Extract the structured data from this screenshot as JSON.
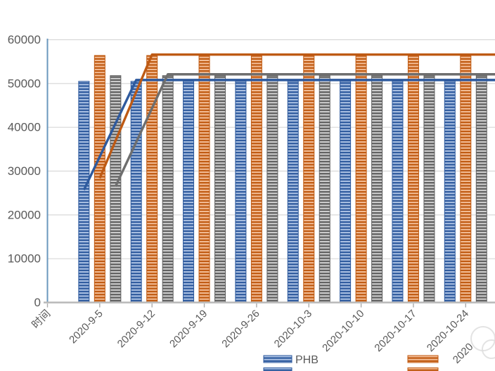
{
  "chart_data": {
    "type": "bar",
    "subtype": "bar-line-combo",
    "title": "",
    "xlabel": "",
    "ylabel": "",
    "categories": [
      "时间",
      "2020-9-5",
      "2020-9-12",
      "2020-9-19",
      "2020-9-26",
      "2020-10-3",
      "2020-10-10",
      "2020-10-17",
      "2020-10-24"
    ],
    "clipped_next_category_partial": "2020",
    "bar_series": [
      {
        "name": "PHB",
        "color_dark": "#2E5A9E",
        "color_light": "#AEC4E5",
        "values": [
          null,
          50500,
          50500,
          50500,
          50500,
          50500,
          50500,
          50500,
          50500
        ]
      },
      {
        "name": "",
        "color_dark": "#C05A11",
        "color_light": "#F4BF99",
        "values": [
          null,
          56400,
          56400,
          56400,
          56400,
          56400,
          56400,
          56400,
          56400
        ]
      },
      {
        "name": "",
        "color_dark": "#606060",
        "color_light": "#D2D2D2",
        "values": [
          null,
          51800,
          51800,
          51800,
          51800,
          51800,
          51800,
          51800,
          51800
        ]
      }
    ],
    "line_series": [
      {
        "name": "",
        "color": "#2E5A9E",
        "values": [
          null,
          25700,
          50800,
          50800,
          50800,
          50800,
          50800,
          50800,
          50800
        ]
      },
      {
        "name": "",
        "color": "#BE5A14",
        "values": [
          null,
          28400,
          56600,
          56600,
          56600,
          56600,
          56600,
          56600,
          56600
        ]
      },
      {
        "name": "",
        "color": "#6E6E6E",
        "values": [
          null,
          26500,
          52100,
          52100,
          52100,
          52100,
          52100,
          52100,
          52100
        ]
      }
    ],
    "lines_extend_to_right_edge": true,
    "lines_aligned_to_bar_positions": true,
    "ylim": [
      0,
      60000
    ],
    "yticks": [
      "0",
      "10000",
      "20000",
      "30000",
      "40000",
      "50000",
      "60000"
    ],
    "grid": true,
    "legend_position": "bottom",
    "legend_entries": [
      {
        "label": "PHB",
        "swatch": "blue-hatch"
      },
      {
        "label": "",
        "swatch": "orange-hatch"
      }
    ],
    "legend_second_row_clipped": true
  },
  "colors": {
    "y_axis_line": "#6A97BD",
    "x_axis_line": "#B8B8B8",
    "tick": "#ABABAB",
    "gridline": "#D9D9D9",
    "label_text": "#595959",
    "watermark": "#DCDCDC",
    "background": "#FFFFFF"
  }
}
